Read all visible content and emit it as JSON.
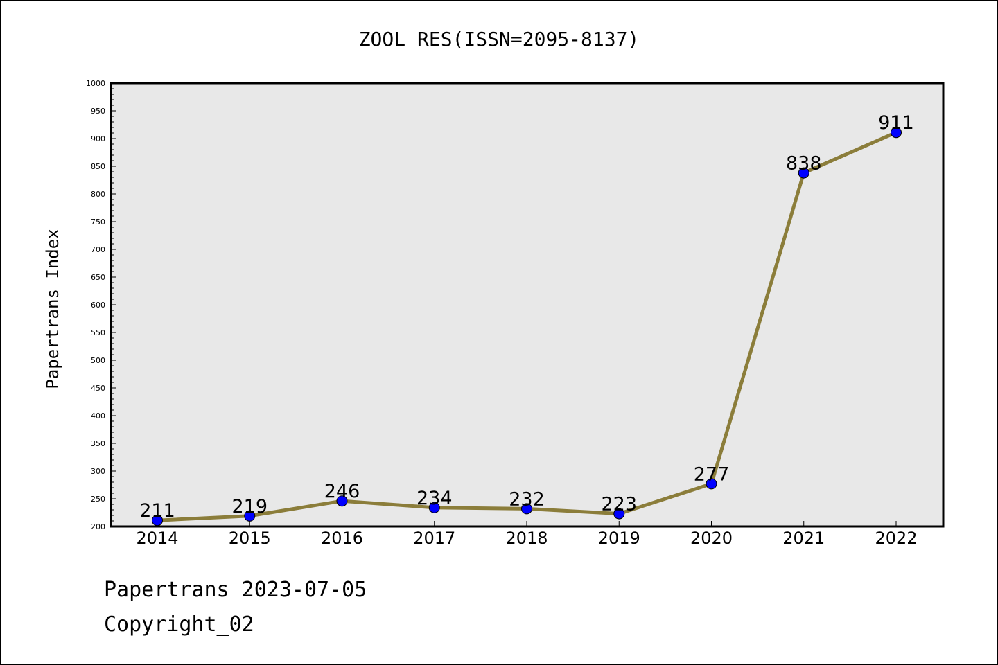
{
  "chart_data": {
    "type": "line",
    "title": "ZOOL RES(ISSN=2095-8137)",
    "xlabel": "",
    "ylabel": "Papertrans Index",
    "categories": [
      "2014",
      "2015",
      "2016",
      "2017",
      "2018",
      "2019",
      "2020",
      "2021",
      "2022"
    ],
    "series": [
      {
        "values": [
          211,
          219,
          246,
          234,
          232,
          223,
          277,
          838,
          911
        ]
      }
    ],
    "ylim": [
      200,
      1000
    ],
    "yticks": [
      200,
      250,
      300,
      350,
      400,
      450,
      500,
      550,
      600,
      650,
      700,
      750,
      800,
      850,
      900,
      950,
      1000
    ],
    "grid": false,
    "legend": "none",
    "data_labels": true,
    "colors": {
      "line": "#8B7D3A",
      "marker": "#0000FF",
      "marker_edge": "#000000",
      "plot_background": "#E8E8E8"
    }
  },
  "footer": {
    "line1": "Papertrans 2023-07-05",
    "line2": "Copyright_02"
  }
}
